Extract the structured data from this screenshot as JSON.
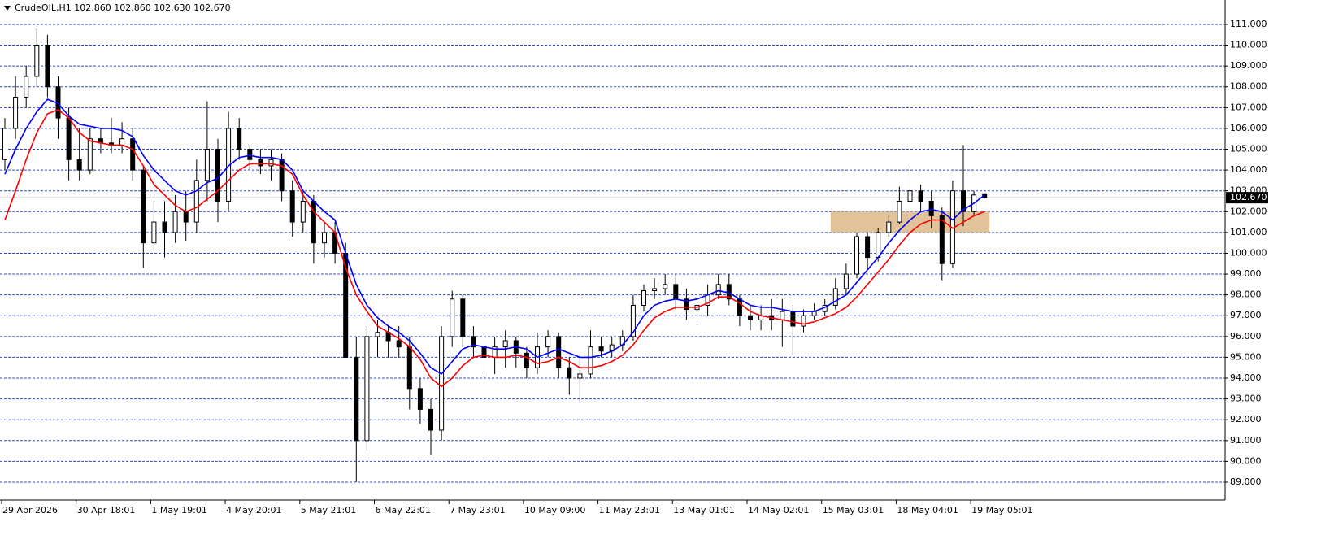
{
  "chart_data": {
    "type": "candlestick",
    "title": "CrudeOIL,H1  102.860 102.860 102.630 102.670",
    "categories": [
      "29 Apr 2026",
      null,
      null,
      null,
      null,
      null,
      null,
      "30 Apr 18:01",
      null,
      null,
      null,
      null,
      null,
      null,
      "1 May 19:01",
      null,
      null,
      null,
      null,
      null,
      null,
      "4 May 20:01",
      null,
      null,
      null,
      null,
      null,
      null,
      "5 May 21:01",
      null,
      null,
      null,
      null,
      null,
      null,
      "6 May 22:01",
      null,
      null,
      null,
      null,
      null,
      null,
      "7 May 23:01",
      null,
      null,
      null,
      null,
      null,
      null,
      "10 May 09:00",
      null,
      null,
      null,
      null,
      null,
      null,
      "11 May 23:01",
      null,
      null,
      null,
      null,
      null,
      null,
      "13 May 01:01",
      null,
      null,
      null,
      null,
      null,
      null,
      "14 May 02:01",
      null,
      null,
      null,
      null,
      null,
      null,
      "15 May 03:01",
      null,
      null,
      null,
      null,
      null,
      null,
      "18 May 04:01",
      null,
      null,
      null,
      null,
      null,
      null,
      "19 May 05:01",
      null
    ],
    "open": [
      104.5,
      106,
      107.5,
      108.5,
      110,
      108,
      106.5,
      104.5,
      104,
      105.5,
      105.3,
      105.2,
      105.5,
      104,
      100.5,
      101.5,
      101,
      102,
      101.5,
      103.5,
      105,
      102.5,
      106,
      105,
      104.5,
      104.2,
      104.5,
      103,
      101.5,
      102.5,
      100.5,
      101,
      100,
      95,
      91,
      96,
      96.2,
      95.8,
      95.5,
      93.5,
      92.5,
      91.5,
      96,
      97.8,
      96,
      95.5,
      95,
      95.5,
      95.8,
      95.2,
      94.5,
      95.5,
      96,
      94.5,
      94,
      94.2,
      95.5,
      95.3,
      95.6,
      96,
      97.5,
      98.2,
      98.3,
      98.5,
      97.8,
      97.3,
      97.5,
      98,
      98.5,
      97.8,
      97,
      96.8,
      97,
      96.8,
      97.2,
      96.5,
      97,
      97.2,
      97.5,
      98.3,
      99,
      100.8,
      99.8,
      101,
      101.5,
      102.5,
      103,
      102.5,
      101.8,
      99.5,
      103,
      102,
      102.86
    ],
    "high": [
      106.5,
      108.5,
      109,
      110.8,
      110.5,
      108.5,
      107,
      106,
      106,
      106,
      106.5,
      106.3,
      106,
      104.2,
      102.5,
      102.5,
      102.8,
      103,
      104.5,
      107.3,
      105.5,
      106.8,
      106.5,
      105.2,
      105,
      105,
      104.8,
      103.5,
      103,
      102.8,
      101.5,
      101.5,
      100.5,
      96,
      96.5,
      96.8,
      96.5,
      96.5,
      96,
      94,
      93,
      96.5,
      98.2,
      98,
      96.5,
      96,
      96,
      96.3,
      96,
      95.5,
      96.2,
      96.3,
      96.2,
      95,
      95,
      96.3,
      96,
      96,
      96.3,
      98,
      98.5,
      98.8,
      99,
      99,
      98.3,
      98,
      98.5,
      99,
      99,
      98,
      97.5,
      97.5,
      97.8,
      97.8,
      97.5,
      97.3,
      97.6,
      97.8,
      98.8,
      99.5,
      101,
      101,
      101.2,
      101.8,
      103.2,
      104.2,
      103.3,
      103,
      102.2,
      103.5,
      105.2,
      103,
      102.86
    ],
    "low": [
      104,
      105.5,
      107,
      108,
      107.5,
      105.5,
      103.5,
      103.5,
      103.8,
      104.8,
      104.8,
      104.8,
      103.5,
      99.3,
      100,
      99.8,
      100.5,
      100.6,
      101,
      102.5,
      101.5,
      102,
      104.5,
      104,
      103.8,
      103.5,
      102.5,
      100.8,
      101,
      99.5,
      99.8,
      99.5,
      95,
      89,
      90.5,
      95,
      95,
      95,
      92.5,
      91.8,
      90.3,
      91,
      95.5,
      95.5,
      95,
      94.3,
      94.2,
      94.5,
      94.5,
      94,
      94.2,
      95,
      94,
      93.2,
      92.8,
      94,
      95,
      95,
      95.3,
      95.8,
      97.2,
      97.8,
      98,
      97.3,
      96.8,
      96.8,
      97,
      97.8,
      97.5,
      96.5,
      96.3,
      96.3,
      96.3,
      95.5,
      95.1,
      96.2,
      96.8,
      97,
      97.3,
      98,
      98.8,
      99.2,
      99.6,
      100.8,
      101.4,
      102,
      102,
      101.2,
      98.7,
      99.3,
      101.3,
      101.8,
      102.63
    ],
    "close": [
      106,
      107.5,
      108.5,
      110,
      108,
      106.5,
      104.5,
      104,
      105.5,
      105.3,
      105.2,
      105.5,
      104,
      100.5,
      101.5,
      101,
      102,
      101.5,
      103.5,
      105,
      102.5,
      106,
      105,
      104.5,
      104.2,
      104.5,
      103,
      101.5,
      102.5,
      100.5,
      101,
      100,
      95,
      91,
      96,
      96.2,
      95.8,
      95.5,
      93.5,
      92.5,
      91.5,
      96,
      97.8,
      96,
      95.5,
      95,
      95.5,
      95.8,
      95.2,
      94.5,
      95.5,
      96,
      94.5,
      94,
      94.2,
      95.5,
      95.3,
      95.6,
      96,
      97.5,
      98.2,
      98.3,
      98.5,
      97.8,
      97.3,
      97.5,
      98,
      98.5,
      97.8,
      97,
      96.8,
      97,
      96.8,
      97.2,
      96.5,
      97,
      97.2,
      97.5,
      98.3,
      99,
      100.8,
      99.8,
      101,
      101.5,
      102.5,
      103,
      102.5,
      101.8,
      99.5,
      103,
      102,
      102.8,
      102.67
    ],
    "lines": [
      {
        "color": "#0000ff",
        "values": [
          103.8,
          105,
          106,
          106.8,
          107.4,
          107.2,
          106.6,
          106.2,
          106.1,
          106,
          106,
          105.9,
          105.6,
          104.7,
          104,
          103.5,
          103,
          102.8,
          103,
          103.4,
          103.6,
          104.2,
          104.6,
          104.7,
          104.6,
          104.6,
          104.5,
          104,
          103,
          102.5,
          102,
          101.6,
          100,
          98.5,
          97.5,
          96.9,
          96.5,
          96.2,
          95.8,
          95.2,
          94.5,
          94.2,
          94.8,
          95.4,
          95.6,
          95.5,
          95.4,
          95.4,
          95.5,
          95.4,
          95,
          95.2,
          95.4,
          95.2,
          95,
          95,
          95.1,
          95.3,
          95.6,
          96.2,
          97,
          97.5,
          97.7,
          97.8,
          97.7,
          97.8,
          98,
          98.2,
          98.1,
          97.8,
          97.5,
          97.4,
          97.4,
          97.3,
          97.2,
          97.2,
          97.2,
          97.4,
          97.7,
          98,
          98.6,
          99.2,
          99.8,
          100.5,
          101.1,
          101.6,
          102,
          102.1,
          102,
          101.6,
          102.1,
          102.4,
          102.8
        ]
      },
      {
        "color": "#ff0000",
        "values": [
          101.6,
          103,
          104.5,
          105.8,
          106.7,
          106.9,
          106.5,
          105.8,
          105.4,
          105.3,
          105.2,
          105.2,
          105,
          104.2,
          103.3,
          102.8,
          102.3,
          102,
          102.2,
          102.6,
          103,
          103.5,
          104,
          104.3,
          104.3,
          104.3,
          104.2,
          103.8,
          102.8,
          102,
          101.5,
          101,
          99.3,
          98,
          97.2,
          96.5,
          96.2,
          95.9,
          95.5,
          94.9,
          94,
          93.6,
          94,
          94.6,
          95,
          95.1,
          95,
          95,
          95.1,
          95,
          94.7,
          94.8,
          95,
          94.8,
          94.5,
          94.5,
          94.6,
          94.8,
          95.1,
          95.6,
          96.3,
          96.9,
          97.2,
          97.4,
          97.4,
          97.4,
          97.6,
          97.9,
          97.9,
          97.6,
          97.2,
          97,
          96.9,
          96.8,
          96.7,
          96.6,
          96.7,
          96.9,
          97.1,
          97.4,
          97.9,
          98.5,
          99.1,
          99.7,
          100.4,
          101,
          101.4,
          101.6,
          101.6,
          101.2,
          101.5,
          101.8,
          102
        ]
      }
    ],
    "zone": {
      "from": 78,
      "to": 92,
      "low": 101,
      "high": 102,
      "color": "#deb887"
    },
    "current_price": {
      "value": 102.67,
      "label": "102.670"
    },
    "ylim": [
      88.14,
      112.17
    ],
    "yticks": [
      {
        "value": 89,
        "label": "89.000"
      },
      {
        "value": 90,
        "label": "90.000"
      },
      {
        "value": 91,
        "label": "91.000"
      },
      {
        "value": 92,
        "label": "92.000"
      },
      {
        "value": 93,
        "label": "93.000"
      },
      {
        "value": 94,
        "label": "94.000"
      },
      {
        "value": 95,
        "label": "95.000"
      },
      {
        "value": 96,
        "label": "96.000"
      },
      {
        "value": 97,
        "label": "97.000"
      },
      {
        "value": 98,
        "label": "98.000"
      },
      {
        "value": 99,
        "label": "99.000"
      },
      {
        "value": 100,
        "label": "100.000"
      },
      {
        "value": 101,
        "label": "101.000"
      },
      {
        "value": 102,
        "label": "102.000"
      },
      {
        "value": 103,
        "label": "103.000"
      },
      {
        "value": 104,
        "label": "104.000"
      },
      {
        "value": 105,
        "label": "105.000"
      },
      {
        "value": 106,
        "label": "106.000"
      },
      {
        "value": 107,
        "label": "107.000"
      },
      {
        "value": 108,
        "label": "108.000"
      },
      {
        "value": 109,
        "label": "109.000"
      },
      {
        "value": 110,
        "label": "110.000"
      },
      {
        "value": 111,
        "label": "111.000"
      }
    ],
    "grid": true
  }
}
